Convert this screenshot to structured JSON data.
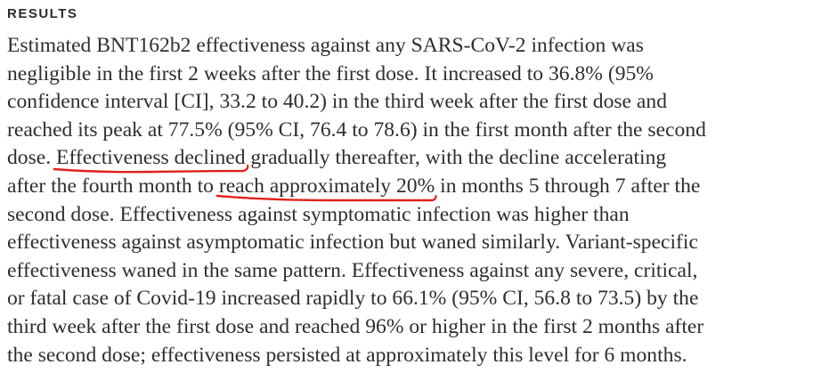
{
  "heading": "RESULTS",
  "lines": [
    "Estimated BNT162b2 effectiveness against any SARS-CoV-2 infection was",
    "negligible in the first 2 weeks after the first dose. It increased to 36.8% (95%",
    "confidence interval [CI], 33.2 to 40.2) in the third week after the first dose and",
    "reached its peak at 77.5% (95% CI, 76.4 to 78.6) in the first month after the second"
  ],
  "line5": {
    "before": "dose. ",
    "highlight": "Effectiveness declined",
    "after": " gradually thereafter, with the decline accelerating"
  },
  "line6": {
    "before": "after the fourth month to ",
    "highlight": "reach approximately 20%",
    "after": " in months 5 through 7 after the"
  },
  "lines_after": [
    "second dose. Effectiveness against symptomatic infection was higher than",
    "effectiveness against asymptomatic infection but waned similarly. Variant-specific",
    "effectiveness waned in the same pattern. Effectiveness against any severe, critical,",
    "or fatal case of Covid-19 increased rapidly to 66.1% (95% CI, 56.8 to 73.5) by the",
    "third week after the first dose and reached 96% or higher in the first 2 months after",
    "the second dose; effectiveness persisted at approximately this level for 6 months."
  ],
  "colors": {
    "text": "#2e2e2e",
    "annotation": "#e0201b"
  }
}
